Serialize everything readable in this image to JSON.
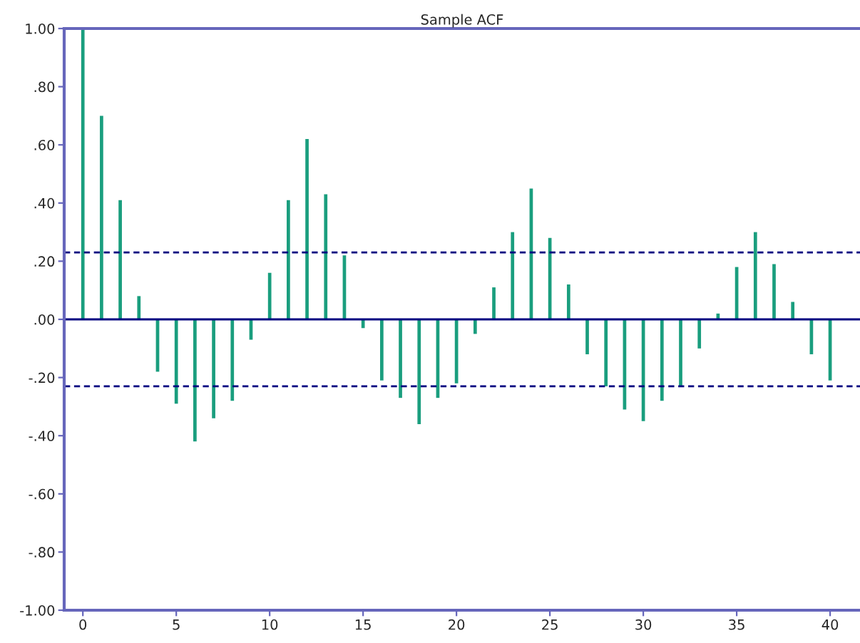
{
  "chart_data": {
    "type": "bar",
    "title": "Sample ACF",
    "x": [
      0,
      1,
      2,
      3,
      4,
      5,
      6,
      7,
      8,
      9,
      10,
      11,
      12,
      13,
      14,
      15,
      16,
      17,
      18,
      19,
      20,
      21,
      22,
      23,
      24,
      25,
      26,
      27,
      28,
      29,
      30,
      31,
      32,
      33,
      34,
      35,
      36,
      37,
      38,
      39,
      40
    ],
    "values": [
      1.0,
      0.7,
      0.41,
      0.08,
      -0.18,
      -0.29,
      -0.42,
      -0.34,
      -0.28,
      -0.07,
      0.16,
      0.41,
      0.62,
      0.43,
      0.22,
      -0.03,
      -0.21,
      -0.27,
      -0.36,
      -0.27,
      -0.22,
      -0.05,
      0.11,
      0.3,
      0.45,
      0.28,
      0.12,
      -0.12,
      -0.23,
      -0.31,
      -0.35,
      -0.28,
      -0.23,
      -0.1,
      0.02,
      0.18,
      0.3,
      0.19,
      0.06,
      -0.12,
      -0.21
    ],
    "color": "#1a9e7e",
    "xlim": [
      -1,
      41.6
    ],
    "xticks": [
      0,
      5,
      10,
      15,
      20,
      25,
      30,
      35,
      40
    ],
    "ylim": [
      -1.0,
      1.0
    ],
    "yticks": [
      {
        "value": -1.0,
        "label": "-1.00"
      },
      {
        "value": -0.8,
        "label": "-.80"
      },
      {
        "value": -0.6,
        "label": "-.60"
      },
      {
        "value": -0.4,
        "label": "-.40"
      },
      {
        "value": -0.2,
        "label": "-.20"
      },
      {
        "value": 0.0,
        "label": ".00"
      },
      {
        "value": 0.2,
        "label": ".20"
      },
      {
        "value": 0.4,
        "label": ".40"
      },
      {
        "value": 0.6,
        "label": ".60"
      },
      {
        "value": 0.8,
        "label": ".80"
      },
      {
        "value": 1.0,
        "label": "1.00"
      }
    ],
    "ref_lines": [
      {
        "axis": "y",
        "value": 0.23,
        "color": "#000080",
        "line_style": "dashed"
      },
      {
        "axis": "y",
        "value": -0.23,
        "color": "#000080",
        "line_style": "dashed"
      },
      {
        "axis": "y",
        "value": 0,
        "color": "#000080",
        "line_style": "solid"
      }
    ],
    "grid": false
  }
}
